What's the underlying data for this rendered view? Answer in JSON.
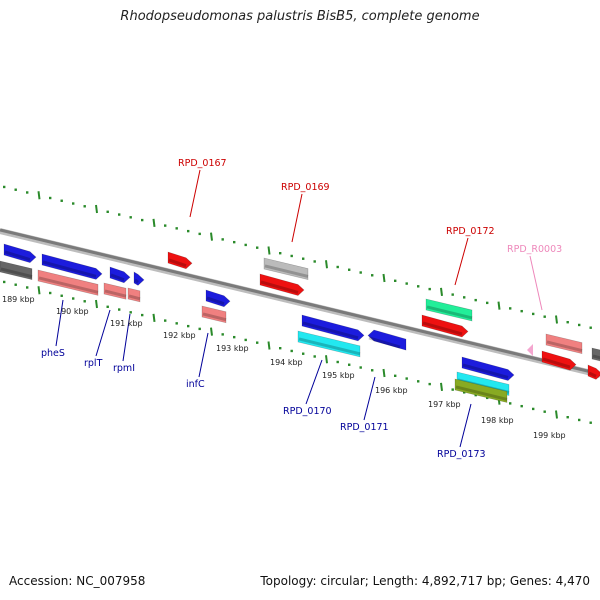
{
  "title": "Rhodopseudomonas palustris BisB5, complete genome",
  "footer": {
    "accession": "Accession: NC_007958",
    "topology": "Topology: circular; Length: 4,892,717 bp; Genes: 4,470"
  },
  "colors": {
    "backbone": "#8a8a8a",
    "tick": "#2a8a2a",
    "gene_blue": "#1c1cdd",
    "gene_salmon": "#f08080",
    "gene_red": "#ee1111",
    "gene_gray": "#bbbbbb",
    "gene_dark": "#666666",
    "gene_green": "#22ee99",
    "gene_cyan": "#22e8f0",
    "gene_olive": "#88aa22",
    "label_red": "#cc0000",
    "label_blue": "#000099",
    "label_pink": "#ee88bb"
  },
  "scale": [
    {
      "label": "189 kbp"
    },
    {
      "label": "190 kbp"
    },
    {
      "label": "191 kbp"
    },
    {
      "label": "192 kbp"
    },
    {
      "label": "193 kbp"
    },
    {
      "label": "194 kbp"
    },
    {
      "label": "195 kbp"
    },
    {
      "label": "196 kbp"
    },
    {
      "label": "197 kbp"
    },
    {
      "label": "198 kbp"
    },
    {
      "label": "199 kbp"
    }
  ],
  "gene_labels": [
    {
      "text": "RPD_0167",
      "color": "label_red"
    },
    {
      "text": "RPD_0169",
      "color": "label_red"
    },
    {
      "text": "RPD_0172",
      "color": "label_red"
    },
    {
      "text": "RPD_R0003",
      "color": "label_pink"
    },
    {
      "text": "pheS",
      "color": "label_blue"
    },
    {
      "text": "rplT",
      "color": "label_blue"
    },
    {
      "text": "rpmI",
      "color": "label_blue"
    },
    {
      "text": "infC",
      "color": "label_blue"
    },
    {
      "text": "RPD_0170",
      "color": "label_blue"
    },
    {
      "text": "RPD_0171",
      "color": "label_blue"
    },
    {
      "text": "RPD_0173",
      "color": "label_blue"
    }
  ]
}
